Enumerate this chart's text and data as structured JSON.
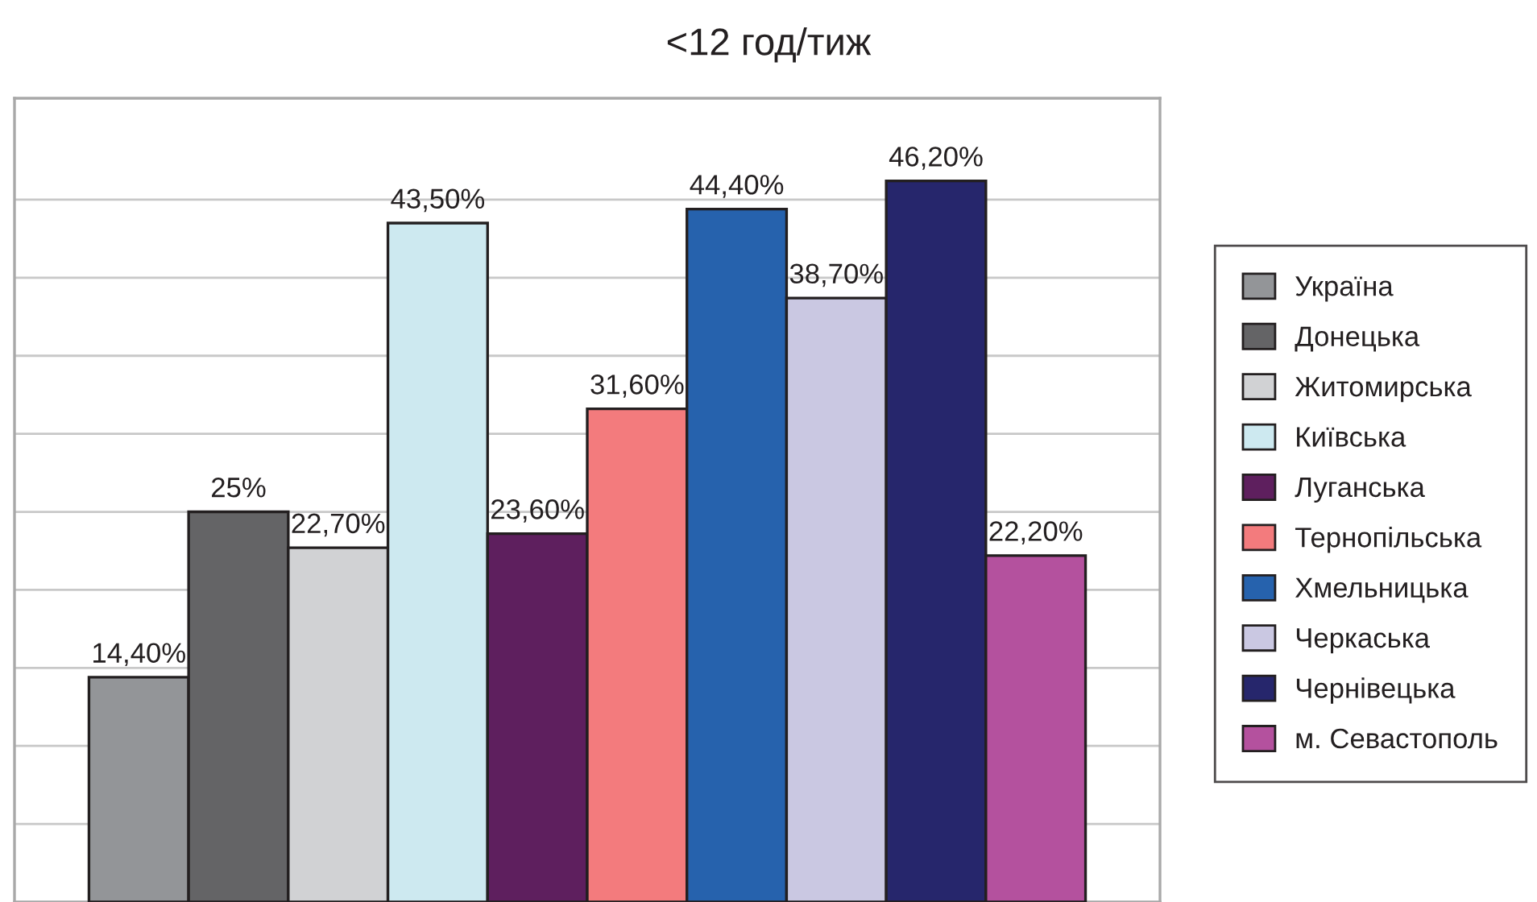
{
  "chart_data": {
    "type": "bar",
    "title": "<12 год/тиж",
    "categories": [
      null
    ],
    "series": [
      {
        "name": "Україна",
        "color": "#939598",
        "values": [
          14.4
        ],
        "value_labels": [
          "14,40%"
        ]
      },
      {
        "name": "Донецька",
        "color": "#646466",
        "values": [
          25
        ],
        "value_labels": [
          "25%"
        ]
      },
      {
        "name": "Житомирська",
        "color": "#d1d2d4",
        "values": [
          22.7
        ],
        "value_labels": [
          "22,70%"
        ]
      },
      {
        "name": "Київська",
        "color": "#cde9f0",
        "values": [
          43.5
        ],
        "value_labels": [
          "43,50%"
        ]
      },
      {
        "name": "Луганська",
        "color": "#5e1f5e",
        "values": [
          23.6
        ],
        "value_labels": [
          "23,60%"
        ]
      },
      {
        "name": "Тернопільська",
        "color": "#f37b7d",
        "values": [
          31.6
        ],
        "value_labels": [
          "31,60%"
        ]
      },
      {
        "name": "Хмельницька",
        "color": "#2662ad",
        "values": [
          44.4
        ],
        "value_labels": [
          "44,40%"
        ]
      },
      {
        "name": "Черкаська",
        "color": "#cac8e2",
        "values": [
          38.7
        ],
        "value_labels": [
          "38,70%"
        ]
      },
      {
        "name": "Чернівецька",
        "color": "#26266c",
        "values": [
          46.2
        ],
        "value_labels": [
          "46,20%"
        ]
      },
      {
        "name": "м. Севастополь",
        "color": "#b4519e",
        "values": [
          22.2
        ],
        "value_labels": [
          "22,20%"
        ]
      }
    ],
    "ylim": [
      0,
      51.5
    ],
    "yticks": [
      {
        "value": 5,
        "label": null
      },
      {
        "value": 10,
        "label": null
      },
      {
        "value": 15,
        "label": null
      },
      {
        "value": 20,
        "label": null
      },
      {
        "value": 25,
        "label": null
      },
      {
        "value": 30,
        "label": null
      },
      {
        "value": 35,
        "label": null
      },
      {
        "value": 40,
        "label": null
      },
      {
        "value": 45,
        "label": null
      }
    ],
    "grid": "y",
    "legend": "right"
  }
}
